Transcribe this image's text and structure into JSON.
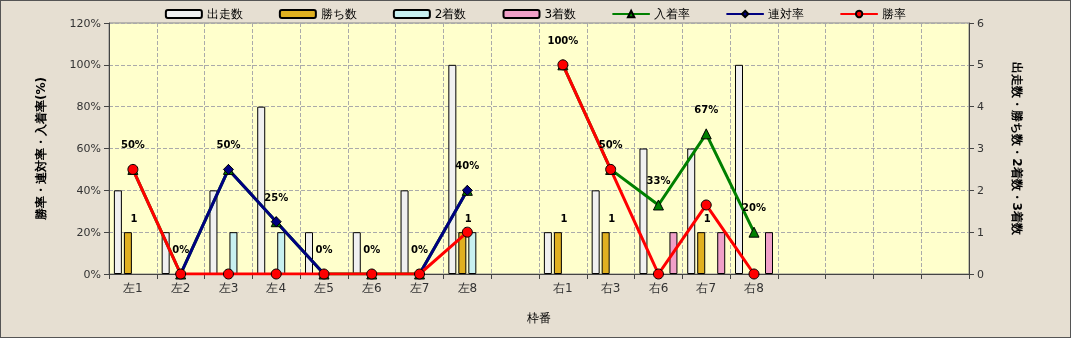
{
  "chart_data": {
    "type": "bar",
    "xlabel": "枠番",
    "ylabel": "勝率・連対率・入着率(%)",
    "y2label": "出走数・勝ち数・2着数・3着数",
    "categories": [
      "左1",
      "左2",
      "左3",
      "左4",
      "左5",
      "左6",
      "左7",
      "左8",
      null,
      "右1",
      "右3",
      "右6",
      "右7",
      "右8",
      null,
      null,
      null,
      null
    ],
    "series": [
      {
        "name": "出走数",
        "axis": "y2",
        "color": "#f0f0f0",
        "values": [
          2,
          1,
          2,
          4,
          1,
          1,
          2,
          5,
          null,
          1,
          2,
          3,
          3,
          5,
          null,
          null,
          null,
          null
        ]
      },
      {
        "name": "勝ち数",
        "axis": "y2",
        "color": "#e0b020",
        "values": [
          1,
          null,
          null,
          null,
          null,
          null,
          null,
          1,
          null,
          1,
          1,
          null,
          1,
          null,
          null,
          null,
          null,
          null
        ],
        "value_labels": [
          "1",
          null,
          null,
          null,
          null,
          null,
          null,
          "1",
          null,
          "1",
          "1",
          null,
          "1",
          null,
          null,
          null,
          null,
          null
        ]
      },
      {
        "name": "2着数",
        "axis": "y2",
        "color": "#c8f0f0",
        "values": [
          null,
          null,
          1,
          1,
          null,
          null,
          null,
          1,
          null,
          null,
          null,
          null,
          null,
          null,
          null,
          null,
          null,
          null
        ]
      },
      {
        "name": "3着数",
        "axis": "y2",
        "color": "#f0a0c8",
        "values": [
          null,
          null,
          null,
          null,
          null,
          null,
          null,
          null,
          null,
          null,
          null,
          1,
          1,
          1,
          null,
          null,
          null,
          null
        ]
      },
      {
        "name": "入着率",
        "type": "line",
        "marker": "triangle",
        "color": "#008000",
        "values": [
          50,
          0,
          50,
          25,
          0,
          0,
          0,
          40,
          null,
          100,
          50,
          33,
          67,
          20,
          null,
          null,
          null,
          null
        ],
        "value_labels": [
          "50%",
          "0%",
          "50%",
          "25%",
          "0%",
          "0%",
          "0%",
          "40%",
          null,
          "100%",
          "50%",
          "33%",
          "67%",
          "20%",
          null,
          null,
          null,
          null
        ]
      },
      {
        "name": "連対率",
        "type": "line",
        "marker": "diamond",
        "color": "#000080",
        "values": [
          null,
          0,
          50,
          25,
          0,
          null,
          0,
          40,
          null,
          null,
          null,
          null,
          null,
          null,
          null,
          null,
          null,
          null
        ]
      },
      {
        "name": "勝率",
        "type": "line",
        "marker": "circle",
        "color": "#ff0000",
        "values": [
          50,
          0,
          0,
          0,
          0,
          0,
          0,
          20,
          null,
          100,
          50,
          0,
          33,
          0,
          null,
          null,
          null,
          null
        ]
      }
    ],
    "ylim": [
      0,
      120
    ],
    "yticks": [
      {
        "value": 0,
        "label": "0%"
      },
      {
        "value": 20,
        "label": "20%"
      },
      {
        "value": 40,
        "label": "40%"
      },
      {
        "value": 60,
        "label": "60%"
      },
      {
        "value": 80,
        "label": "80%"
      },
      {
        "value": 100,
        "label": "100%"
      },
      {
        "value": 120,
        "label": "120%"
      }
    ],
    "y2lim": [
      0,
      6
    ],
    "y2ticks": [
      0,
      1,
      2,
      3,
      4,
      5,
      6
    ],
    "grid": true,
    "legend": "top"
  }
}
